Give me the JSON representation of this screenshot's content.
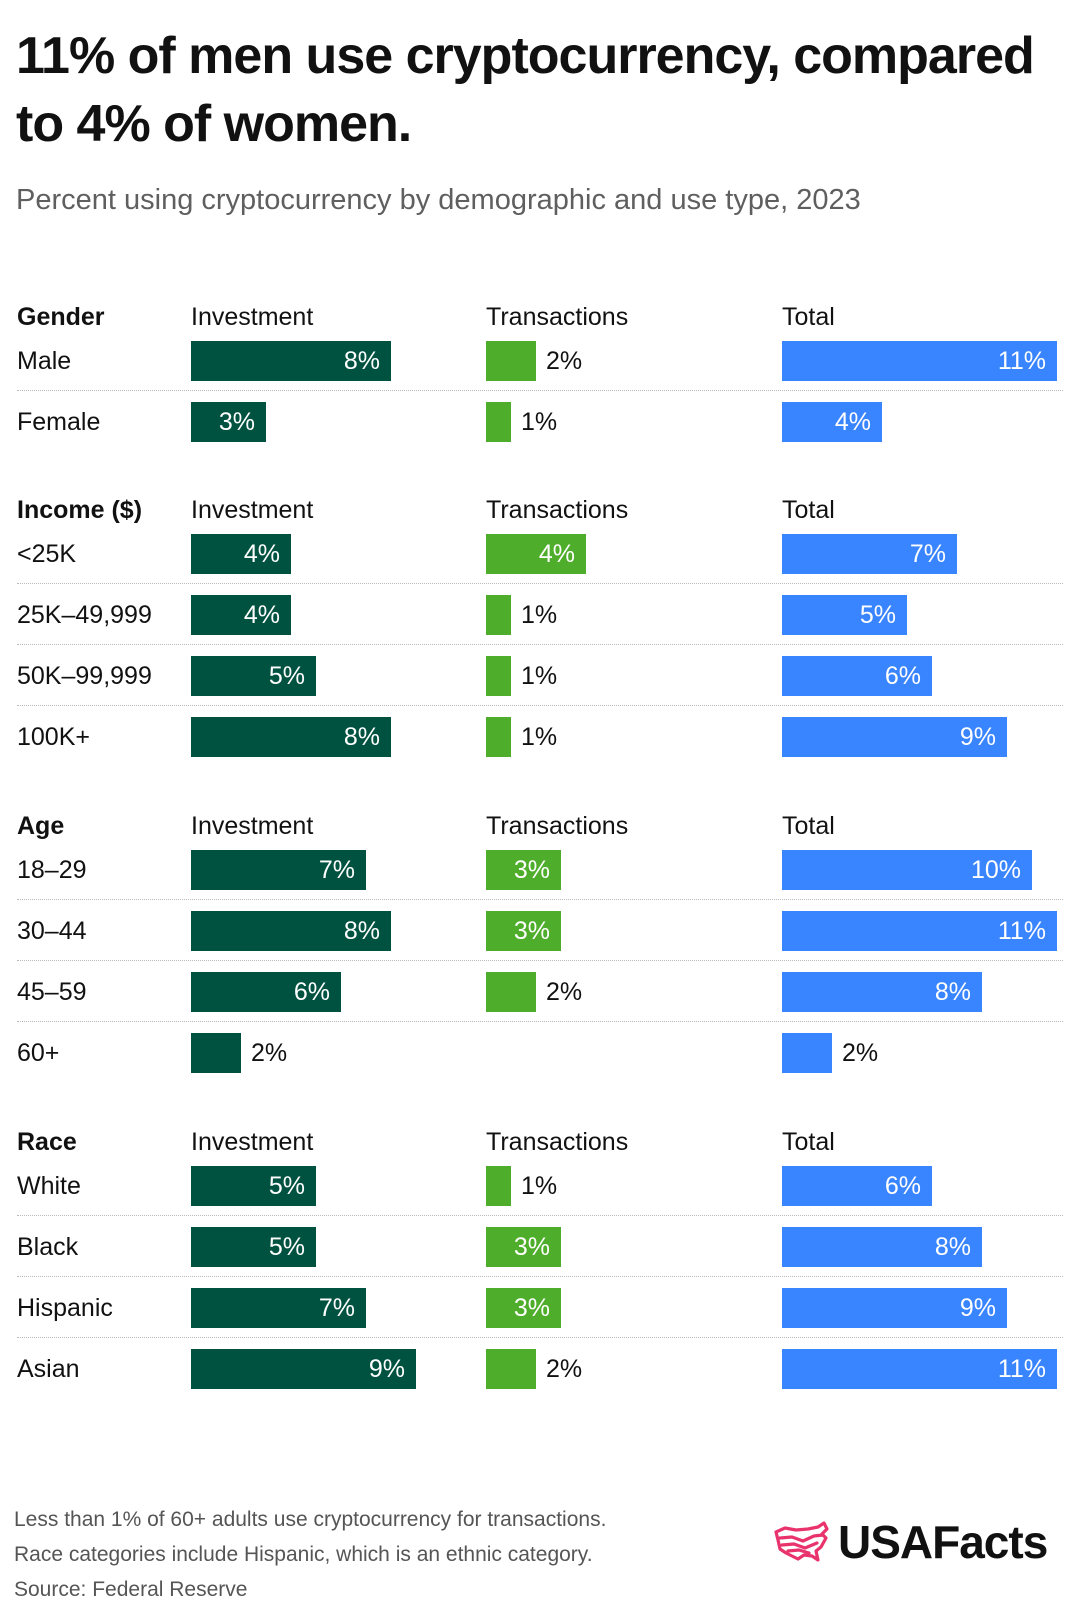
{
  "title": "11% of men use cryptocurrency, compared to 4% of women.",
  "subtitle": "Percent using cryptocurrency by demographic and use type, 2023",
  "colors": {
    "investment": "#005240",
    "transactions": "#4ead2a",
    "total": "#3984ff"
  },
  "chart_data": {
    "type": "bar",
    "orientation": "horizontal",
    "unit": "%",
    "column_labels": [
      "Investment",
      "Transactions",
      "Total"
    ],
    "groups": [
      {
        "label": "Gender",
        "rows": [
          {
            "label": "Male",
            "investment": 8,
            "transactions": 2,
            "total": 11
          },
          {
            "label": "Female",
            "investment": 3,
            "transactions": 1,
            "total": 4
          }
        ]
      },
      {
        "label": "Income ($)",
        "rows": [
          {
            "label": "<25K",
            "investment": 4,
            "transactions": 4,
            "total": 7
          },
          {
            "label": "25K–49,999",
            "investment": 4,
            "transactions": 1,
            "total": 5
          },
          {
            "label": "50K–99,999",
            "investment": 5,
            "transactions": 1,
            "total": 6
          },
          {
            "label": "100K+",
            "investment": 8,
            "transactions": 1,
            "total": 9
          }
        ]
      },
      {
        "label": "Age",
        "rows": [
          {
            "label": "18–29",
            "investment": 7,
            "transactions": 3,
            "total": 10
          },
          {
            "label": "30–44",
            "investment": 8,
            "transactions": 3,
            "total": 11
          },
          {
            "label": "45–59",
            "investment": 6,
            "transactions": 2,
            "total": 8
          },
          {
            "label": "60+",
            "investment": 2,
            "transactions": null,
            "total": 2
          }
        ]
      },
      {
        "label": "Race",
        "rows": [
          {
            "label": "White",
            "investment": 5,
            "transactions": 1,
            "total": 6
          },
          {
            "label": "Black",
            "investment": 5,
            "transactions": 3,
            "total": 8
          },
          {
            "label": "Hispanic",
            "investment": 7,
            "transactions": 3,
            "total": 9
          },
          {
            "label": "Asian",
            "investment": 9,
            "transactions": 2,
            "total": 11
          }
        ]
      }
    ]
  },
  "footer": {
    "notes": [
      "Less than 1% of 60+ adults use cryptocurrency for transactions.",
      "Race categories include Hispanic, which is an ethnic category.",
      "Source: Federal Reserve"
    ]
  },
  "logo": {
    "text": "USAFacts",
    "icon": "usa-map-flag-icon",
    "color": "#e8336d"
  }
}
